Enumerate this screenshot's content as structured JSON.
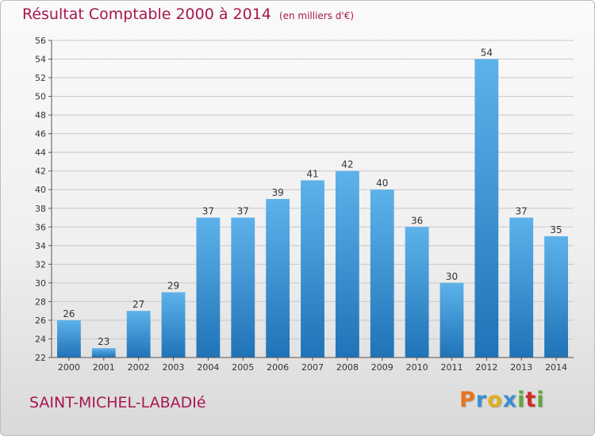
{
  "header": {
    "title": "Résultat Comptable 2000 à 2014",
    "unit": "(en milliers d'€)"
  },
  "footer": {
    "commune": "SAINT-MICHEL-LABADIé",
    "brand": "Proxiti",
    "brand_letters": [
      "P",
      "r",
      "o",
      "x",
      "i",
      "t",
      "i"
    ],
    "brand_colors": [
      "#e8741e",
      "#3a8fd0",
      "#e0b01d",
      "#3a8fd0",
      "#5ea83a",
      "#d02b2b",
      "#5ea83a"
    ]
  },
  "colors": {
    "title": "#a8174f",
    "bar_top": "#5eb2ea",
    "bar_bottom": "#1f73b7",
    "grid": "#c8c8c8"
  },
  "chart_data": {
    "type": "bar",
    "title": "Résultat Comptable 2000 à 2014",
    "subtitle": "(en milliers d'€)",
    "categories": [
      "2000",
      "2001",
      "2002",
      "2003",
      "2004",
      "2005",
      "2006",
      "2007",
      "2008",
      "2009",
      "2010",
      "2011",
      "2012",
      "2013",
      "2014"
    ],
    "values": [
      26,
      23,
      27,
      29,
      37,
      37,
      39,
      41,
      42,
      40,
      36,
      30,
      54,
      37,
      35
    ],
    "data_labels": [
      "26",
      "23",
      "27",
      "29",
      "37",
      "37",
      "39",
      "41",
      "42",
      "40",
      "36",
      "30",
      "54",
      "37",
      "35"
    ],
    "y_ticks": [
      "22",
      "24",
      "26",
      "28",
      "30",
      "32",
      "34",
      "36",
      "38",
      "40",
      "42",
      "44",
      "46",
      "48",
      "50",
      "52",
      "54",
      "56"
    ],
    "ylim": [
      22,
      56
    ],
    "ystep": 2,
    "grid": true,
    "xlabel": "",
    "ylabel": ""
  }
}
